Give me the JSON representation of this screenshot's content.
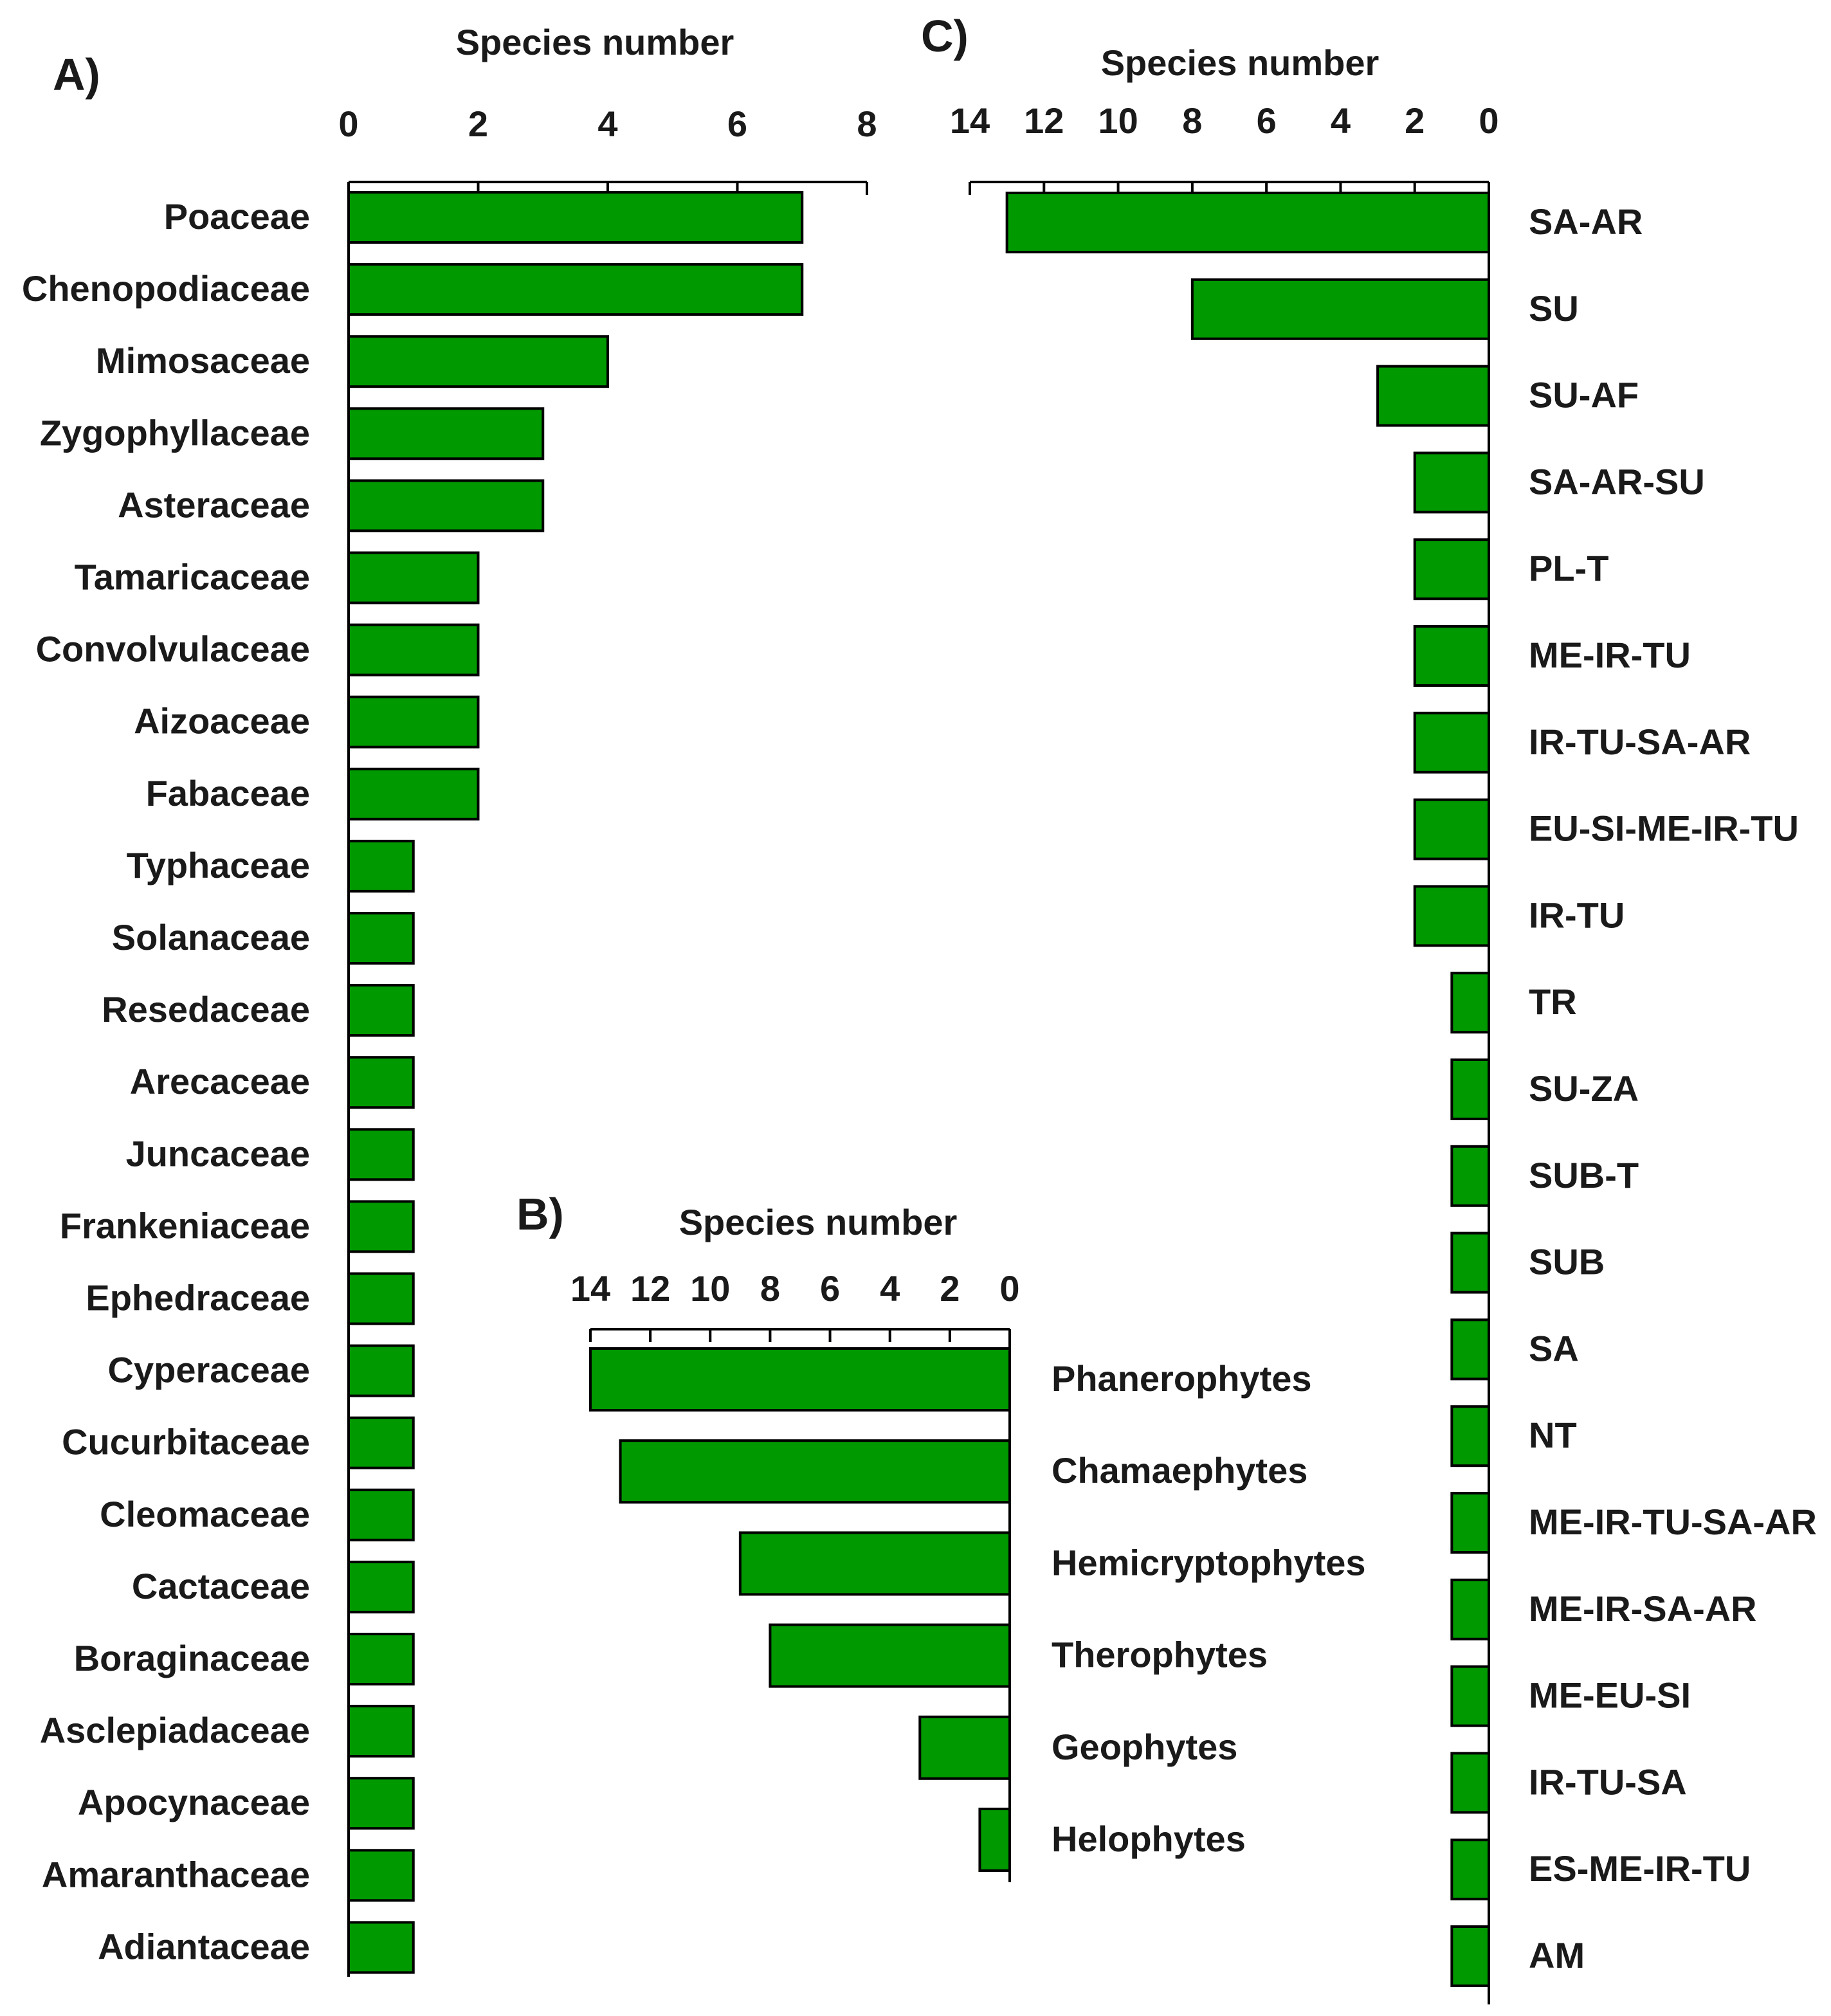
{
  "figure": {
    "bar_color": "#009900",
    "bar_stroke": "#000000"
  },
  "chart_data": [
    {
      "panel": "A)",
      "type": "bar",
      "orientation": "horizontal",
      "direction": "left-to-right",
      "title": "Species number",
      "xlim": [
        0,
        8
      ],
      "ticks": [
        "0",
        "2",
        "4",
        "6",
        "8"
      ],
      "tick_values": [
        0,
        2,
        4,
        6,
        8
      ],
      "label_side": "left",
      "categories": [
        "Poaceae",
        "Chenopodiaceae",
        "Mimosaceae",
        "Zygophyllaceae",
        "Asteraceae",
        "Tamaricaceae",
        "Convolvulaceae",
        "Aizoaceae",
        "Fabaceae",
        "Typhaceae",
        "Solanaceae",
        "Resedaceae",
        "Arecaceae",
        "Juncaceae",
        "Frankeniaceae",
        "Ephedraceae",
        "Cyperaceae",
        "Cucurbitaceae",
        "Cleomaceae",
        "Cactaceae",
        "Boraginaceae",
        "Asclepiadaceae",
        "Apocynaceae",
        "Amaranthaceae",
        "Adiantaceae"
      ],
      "values": [
        7,
        7,
        4,
        3,
        3,
        2,
        2,
        2,
        2,
        1,
        1,
        1,
        1,
        1,
        1,
        1,
        1,
        1,
        1,
        1,
        1,
        1,
        1,
        1,
        1
      ]
    },
    {
      "panel": "B)",
      "type": "bar",
      "orientation": "horizontal",
      "direction": "right-to-left",
      "title": "Species number",
      "xlim": [
        0,
        14
      ],
      "ticks": [
        "14",
        "12",
        "10",
        "8",
        "6",
        "4",
        "2",
        "0"
      ],
      "tick_values": [
        14,
        12,
        10,
        8,
        6,
        4,
        2,
        0
      ],
      "label_side": "right",
      "categories": [
        "Phanerophytes",
        "Chamaephytes",
        "Hemicryptophytes",
        "Therophytes",
        "Geophytes",
        "Helophytes"
      ],
      "values": [
        14,
        13,
        9,
        8,
        3,
        1
      ]
    },
    {
      "panel": "C)",
      "type": "bar",
      "orientation": "horizontal",
      "direction": "right-to-left",
      "title": "Species number",
      "xlim": [
        0,
        14
      ],
      "ticks": [
        "14",
        "12",
        "10",
        "8",
        "6",
        "4",
        "2",
        "0"
      ],
      "tick_values": [
        14,
        12,
        10,
        8,
        6,
        4,
        2,
        0
      ],
      "label_side": "right",
      "categories": [
        "SA-AR",
        "SU",
        "SU-AF",
        "SA-AR-SU",
        "PL-T",
        "ME-IR-TU",
        "IR-TU-SA-AR",
        "EU-SI-ME-IR-TU",
        "IR-TU",
        "TR",
        "SU-ZA",
        "SUB-T",
        "SUB",
        "SA",
        "NT",
        "ME-IR-TU-SA-AR",
        "ME-IR-SA-AR",
        "ME-EU-SI",
        "IR-TU-SA",
        "ES-ME-IR-TU",
        "AM"
      ],
      "values": [
        13,
        8,
        3,
        2,
        2,
        2,
        2,
        2,
        2,
        1,
        1,
        1,
        1,
        1,
        1,
        1,
        1,
        1,
        1,
        1,
        1
      ]
    }
  ]
}
